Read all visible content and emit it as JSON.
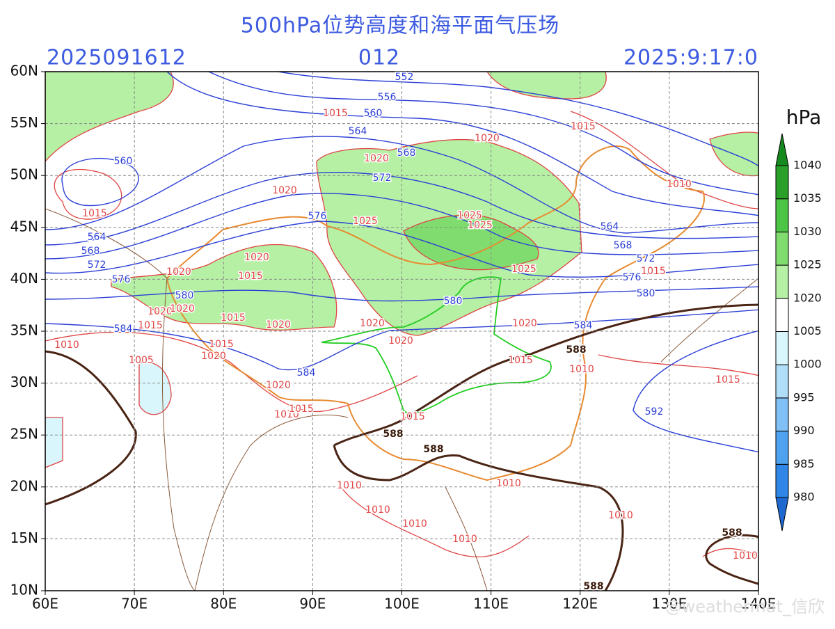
{
  "header": {
    "title": "500hPa位势高度和海平面气压场",
    "init_time": "2025091612",
    "forecast_hour": "012",
    "valid_time": "2025:9:17:0"
  },
  "map": {
    "lon_ticks": [
      {
        "value": 60,
        "label": "60E"
      },
      {
        "value": 70,
        "label": "70E"
      },
      {
        "value": 80,
        "label": "80E"
      },
      {
        "value": 90,
        "label": "90E"
      },
      {
        "value": 100,
        "label": "100E"
      },
      {
        "value": 110,
        "label": "110E"
      },
      {
        "value": 120,
        "label": "120E"
      },
      {
        "value": 130,
        "label": "130E"
      },
      {
        "value": 140,
        "label": "140E"
      }
    ],
    "lat_ticks": [
      {
        "value": 10,
        "label": "10N"
      },
      {
        "value": 15,
        "label": "15N"
      },
      {
        "value": 20,
        "label": "20N"
      },
      {
        "value": 25,
        "label": "25N"
      },
      {
        "value": 30,
        "label": "30N"
      },
      {
        "value": 35,
        "label": "35N"
      },
      {
        "value": 40,
        "label": "40N"
      },
      {
        "value": 45,
        "label": "45N"
      },
      {
        "value": 50,
        "label": "50N"
      },
      {
        "value": 55,
        "label": "55N"
      },
      {
        "value": 60,
        "label": "60N"
      }
    ],
    "height_labels": [
      552,
      556,
      560,
      564,
      568,
      572,
      576,
      560,
      564,
      568,
      572,
      576,
      580,
      584,
      584,
      580,
      584,
      564,
      568,
      572,
      576,
      580,
      592
    ],
    "ridge_labels": [
      588,
      588,
      588,
      588,
      588
    ],
    "pressure_labels": [
      1015,
      1020,
      1015,
      1010,
      1020,
      1020,
      1015,
      1025,
      1025,
      1025,
      1025,
      1020,
      1015,
      1020,
      1015,
      1020,
      1020,
      1015,
      1020,
      1020,
      1020,
      1020,
      1015,
      1015,
      1020,
      1010,
      1005,
      1015,
      1010,
      1020,
      1015,
      1010,
      1015,
      1015,
      1010,
      1010,
      1010,
      1010,
      1010,
      1010,
      1010
    ]
  },
  "colorbar": {
    "unit": "hPa",
    "levels": [
      980,
      985,
      990,
      995,
      1000,
      1005,
      1020,
      1025,
      1030,
      1035,
      1040
    ],
    "colors": [
      "#1f68d0",
      "#2f86e6",
      "#4ea2f0",
      "#80c0f5",
      "#b0def8",
      "#d8f6fb",
      "#ffffff",
      "#b6f0a4",
      "#80dc6e",
      "#4cc445",
      "#2aa02a",
      "#168a1e"
    ]
  },
  "watermark": "@weathermat_信欣"
}
